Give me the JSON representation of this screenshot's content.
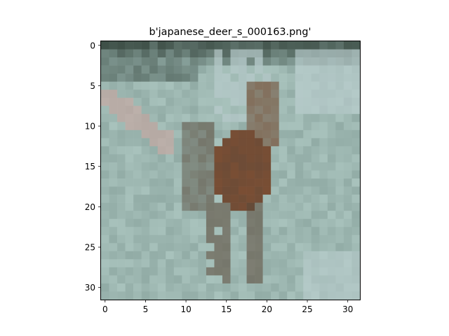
{
  "title": "b'japanese_deer_s_000163.png'",
  "image": {
    "description_kind": "pixelated 32x32 photo",
    "grid_size": 32
  },
  "axes": {
    "x_ticks": [
      0,
      5,
      10,
      15,
      20,
      25,
      30
    ],
    "y_ticks": [
      0,
      5,
      10,
      15,
      20,
      25,
      30
    ],
    "x_range": [
      -0.5,
      31.5
    ],
    "y_range": [
      -0.5,
      31.5
    ],
    "y_inverted": true
  },
  "colors": {
    "ground_light": "#a8c2bc",
    "ground_mid": "#92aca6",
    "trees_dark": "#3f5048",
    "deer_brown": "#7a4e34",
    "deer_dark": "#5e4a3a",
    "sky_patch": "#bccfd0",
    "pink_patch": "#c4a8a2"
  }
}
